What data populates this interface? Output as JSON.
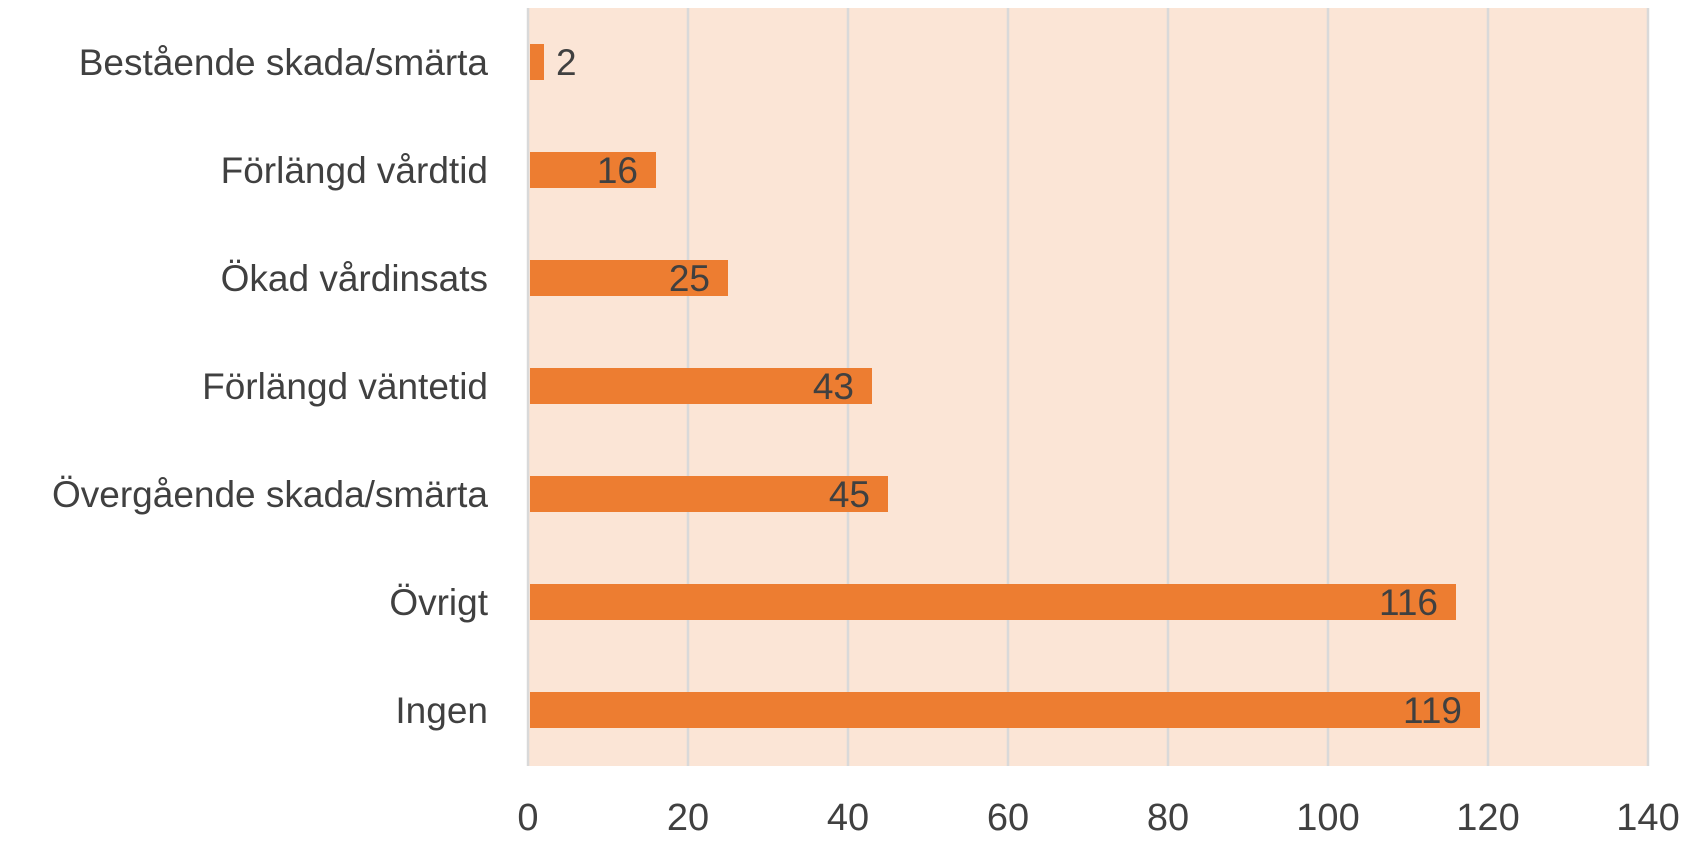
{
  "chart_data": {
    "type": "bar",
    "orientation": "horizontal",
    "categories": [
      "Bestående skada/smärta",
      "Förlängd vårdtid",
      "Ökad vårdinsats",
      "Förlängd väntetid",
      "Övergående skada/smärta",
      "Övrigt",
      "Ingen"
    ],
    "values": [
      2,
      16,
      25,
      43,
      45,
      116,
      119
    ],
    "data_labels": [
      "2",
      "16",
      "25",
      "43",
      "45",
      "116",
      "119"
    ],
    "xlim": [
      0,
      140
    ],
    "x_ticks": [
      0,
      20,
      40,
      60,
      80,
      100,
      120,
      140
    ],
    "x_tick_labels": [
      "0",
      "20",
      "40",
      "60",
      "80",
      "100",
      "120",
      "140"
    ],
    "title": "",
    "xlabel": "",
    "ylabel": "",
    "grid": "vertical",
    "legend": "none",
    "colors": {
      "bar": "#ED7D31",
      "plot_background": "#FBE5D6",
      "gridline": "#D9D9D9",
      "text": "#404040"
    }
  }
}
